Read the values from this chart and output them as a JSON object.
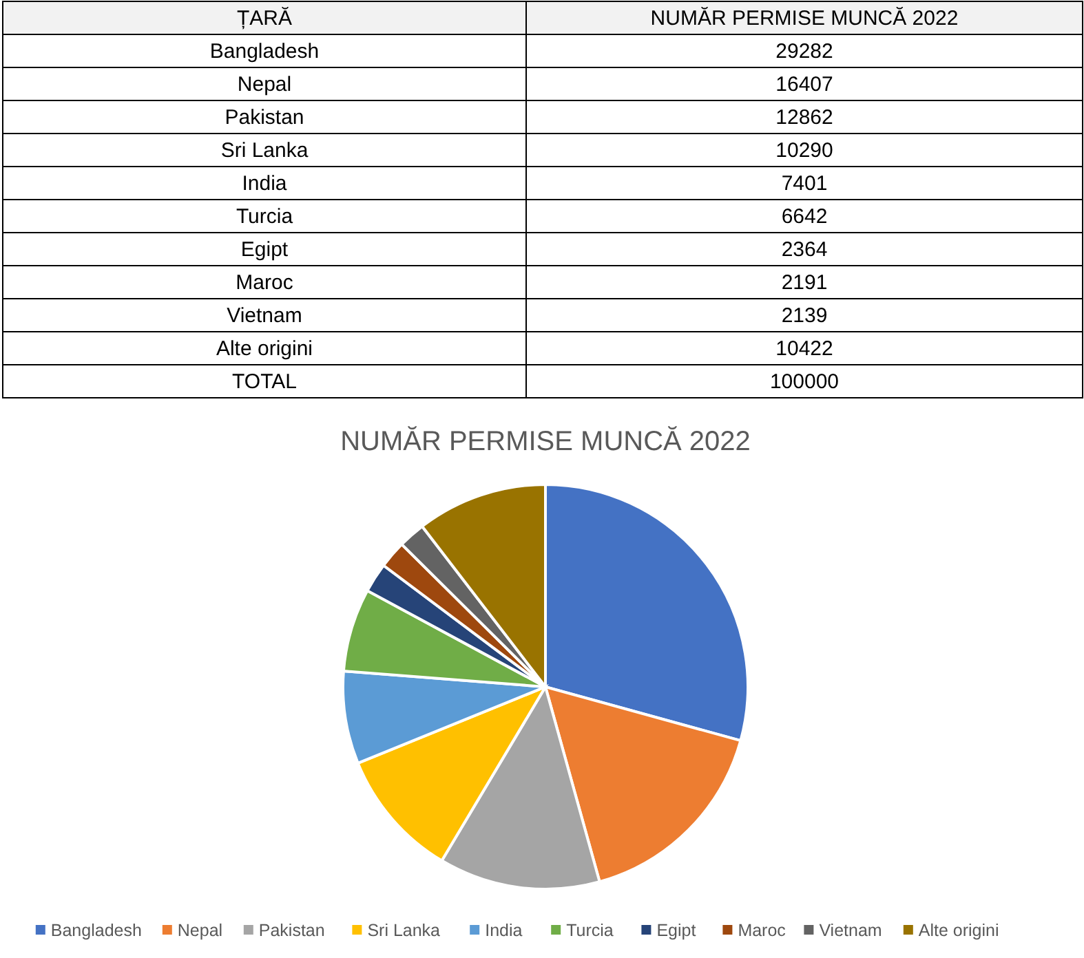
{
  "chart_data": [
    {
      "type": "other",
      "annotations": [
        "ȚARĂ",
        "NUMĂR PERMISE MUNCĂ 2022",
        "Bangladesh",
        "29282",
        "Nepal",
        "16407",
        "Pakistan",
        "12862",
        "Sri Lanka",
        "10290",
        "India",
        "7401",
        "Turcia",
        "6642",
        "Egipt",
        "2364",
        "Maroc",
        "2191",
        "Vietnam",
        "2139",
        "Alte origini",
        "10422",
        "TOTAL",
        "100000"
      ]
    },
    {
      "type": "pie",
      "title": "NUMĂR PERMISE MUNCĂ 2022",
      "categories": [
        "Bangladesh",
        "Nepal",
        "Pakistan",
        "Sri Lanka",
        "India",
        "Turcia",
        "Egipt",
        "Maroc",
        "Vietnam",
        "Alte origini"
      ],
      "values": [
        29.282,
        16.407,
        12.862,
        10.29,
        7.401,
        6.642,
        2.364,
        2.191,
        2.139,
        10.422
      ],
      "colors": [
        "#4472c4",
        "#ed7d31",
        "#a5a5a5",
        "#ffc000",
        "#5b9bd5",
        "#70ad47",
        "#264478",
        "#9e480e",
        "#636363",
        "#997300"
      ],
      "legend": "bottom"
    }
  ]
}
